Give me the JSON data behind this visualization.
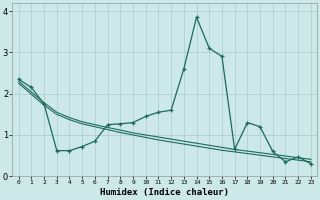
{
  "xlabel": "Humidex (Indice chaleur)",
  "background_color": "#cce8e8",
  "grid_color": "#aacccc",
  "line_color": "#1a6b5a",
  "xlim": [
    -0.5,
    23.5
  ],
  "ylim": [
    0,
    4.2
  ],
  "xticks": [
    0,
    1,
    2,
    3,
    4,
    5,
    6,
    7,
    8,
    9,
    10,
    11,
    12,
    13,
    14,
    15,
    16,
    17,
    18,
    19,
    20,
    21,
    22,
    23
  ],
  "yticks": [
    0,
    1,
    2,
    3,
    4
  ],
  "line1_x": [
    0,
    1,
    2,
    3,
    4,
    5,
    6,
    7,
    8,
    9,
    10,
    11,
    12,
    13,
    14,
    15,
    16,
    17,
    18,
    19,
    20,
    21,
    22,
    23
  ],
  "line1_y": [
    2.35,
    2.15,
    1.75,
    0.62,
    0.62,
    0.72,
    0.85,
    1.25,
    1.27,
    1.3,
    1.45,
    1.55,
    1.6,
    2.6,
    3.85,
    3.1,
    2.9,
    0.65,
    1.3,
    1.2,
    0.6,
    0.35,
    0.47,
    0.3
  ],
  "line2_x": [
    0,
    2,
    3,
    4,
    5,
    6,
    7,
    8,
    9,
    10,
    11,
    12,
    13,
    14,
    15,
    16,
    17,
    18,
    19,
    20,
    21,
    22,
    23
  ],
  "line2_y": [
    2.3,
    1.78,
    1.55,
    1.42,
    1.32,
    1.25,
    1.18,
    1.12,
    1.05,
    1.0,
    0.95,
    0.9,
    0.85,
    0.8,
    0.75,
    0.7,
    0.65,
    0.61,
    0.57,
    0.53,
    0.49,
    0.45,
    0.41
  ],
  "line3_x": [
    0,
    2,
    3,
    4,
    5,
    6,
    7,
    8,
    9,
    10,
    11,
    12,
    13,
    14,
    15,
    16,
    17,
    18,
    19,
    20,
    21,
    22,
    23
  ],
  "line3_y": [
    2.25,
    1.72,
    1.5,
    1.37,
    1.27,
    1.2,
    1.13,
    1.06,
    1.0,
    0.94,
    0.88,
    0.83,
    0.78,
    0.73,
    0.68,
    0.63,
    0.59,
    0.55,
    0.51,
    0.47,
    0.43,
    0.39,
    0.35
  ]
}
